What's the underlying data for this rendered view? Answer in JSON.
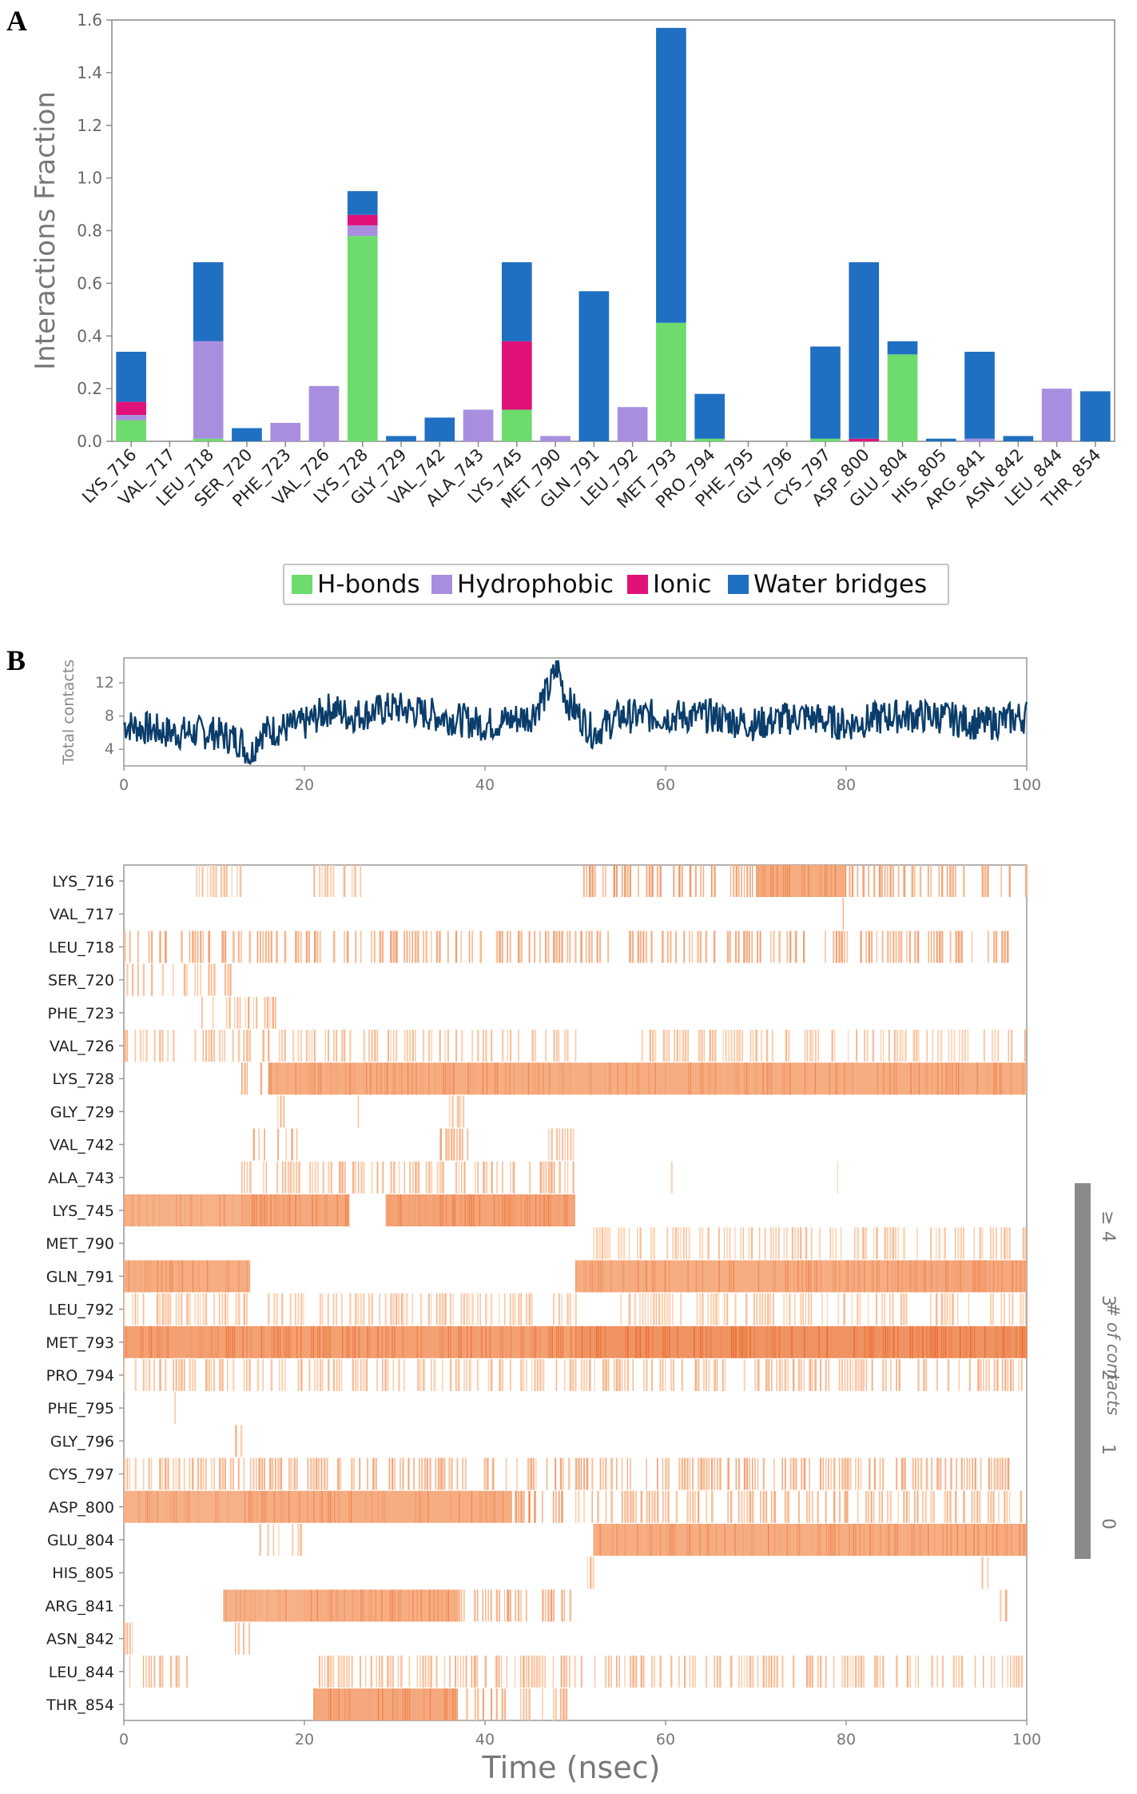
{
  "chart_data": [
    {
      "panel": "A",
      "type": "bar",
      "stacked": true,
      "ylabel": "Interactions Fraction",
      "xlabel": "",
      "ylim": [
        0,
        1.6
      ],
      "yticks": [
        0.0,
        0.2,
        0.4,
        0.6,
        0.8,
        1.0,
        1.2,
        1.4,
        1.6
      ],
      "ytick_labels": [
        "0.0",
        "0.2",
        "0.4",
        "0.6",
        "0.8",
        "1.0",
        "1.2",
        "1.4",
        "1.6"
      ],
      "categories": [
        "LYS_716",
        "VAL_717",
        "LEU_718",
        "SER_720",
        "PHE_723",
        "VAL_726",
        "LYS_728",
        "GLY_729",
        "VAL_742",
        "ALA_743",
        "LYS_745",
        "MET_790",
        "GLN_791",
        "LEU_792",
        "MET_793",
        "PRO_794",
        "PHE_795",
        "GLY_796",
        "CYS_797",
        "ASP_800",
        "GLU_804",
        "HIS_805",
        "ARG_841",
        "ASN_842",
        "LEU_844",
        "THR_854"
      ],
      "series": [
        {
          "name": "H-bonds",
          "color": "#6ddc6d",
          "values": [
            0.08,
            0,
            0.01,
            0,
            0,
            0,
            0.78,
            0,
            0,
            0,
            0.12,
            0,
            0,
            0,
            0.45,
            0.01,
            0,
            0,
            0.01,
            0,
            0.33,
            0,
            0,
            0,
            0,
            0
          ]
        },
        {
          "name": "Hydrophobic",
          "color": "#a98ee0",
          "values": [
            0.02,
            0,
            0.37,
            0,
            0.07,
            0.21,
            0.04,
            0,
            0,
            0.12,
            0,
            0.02,
            0,
            0.13,
            0,
            0,
            0,
            0,
            0,
            0,
            0,
            0,
            0.01,
            0,
            0.2,
            0
          ]
        },
        {
          "name": "Ionic",
          "color": "#e0127a",
          "values": [
            0.05,
            0,
            0,
            0,
            0,
            0,
            0.04,
            0,
            0,
            0,
            0.26,
            0,
            0,
            0,
            0,
            0,
            0,
            0,
            0,
            0.01,
            0,
            0,
            0,
            0,
            0,
            0
          ]
        },
        {
          "name": "Water bridges",
          "color": "#1f6fc2",
          "values": [
            0.19,
            0,
            0.3,
            0.05,
            0,
            0,
            0.09,
            0.02,
            0.09,
            0,
            0.3,
            0,
            0.57,
            0,
            1.12,
            0.17,
            0,
            0,
            0.35,
            0.67,
            0.05,
            0.01,
            0.33,
            0.02,
            0,
            0.19
          ]
        }
      ],
      "legend": [
        "H-bonds",
        "Hydrophobic",
        "Ionic",
        "Water bridges"
      ],
      "legend_placement": "bottom-center"
    },
    {
      "panel": "B-top",
      "type": "line",
      "ylabel": "Total contacts",
      "xlabel": "",
      "xlim": [
        0,
        100
      ],
      "ylim": [
        2,
        15
      ],
      "xticks": [
        0,
        20,
        40,
        60,
        80,
        100
      ],
      "xtick_labels": [
        "0",
        "20",
        "40",
        "60",
        "80",
        "100"
      ],
      "yticks": [
        4,
        8,
        12
      ],
      "ytick_labels": [
        "4",
        "8",
        "12"
      ],
      "line_color": "#0b3d6b",
      "description_points": {
        "x": [
          0,
          5,
          10,
          13,
          14,
          15,
          20,
          23,
          25,
          30,
          35,
          40,
          45,
          47,
          48,
          49,
          52,
          55,
          60,
          65,
          70,
          75,
          80,
          85,
          90,
          95,
          100
        ],
        "y": [
          7,
          6,
          6,
          5,
          3,
          6,
          7,
          9,
          8,
          9,
          8,
          7,
          8,
          11,
          14,
          10,
          6,
          8,
          8,
          8,
          7,
          8,
          7,
          8,
          8,
          7,
          8
        ]
      }
    },
    {
      "panel": "B-bottom",
      "type": "heatmap",
      "xlabel": "Time (nsec)",
      "xlim": [
        0,
        100
      ],
      "xticks": [
        0,
        20,
        40,
        60,
        80,
        100
      ],
      "xtick_labels": [
        "0",
        "20",
        "40",
        "60",
        "80",
        "100"
      ],
      "rows": [
        "LYS_716",
        "VAL_717",
        "LEU_718",
        "SER_720",
        "PHE_723",
        "VAL_726",
        "LYS_728",
        "GLY_729",
        "VAL_742",
        "ALA_743",
        "LYS_745",
        "MET_790",
        "GLN_791",
        "LEU_792",
        "MET_793",
        "PRO_794",
        "PHE_795",
        "GLY_796",
        "CYS_797",
        "ASP_800",
        "GLU_804",
        "HIS_805",
        "ARG_841",
        "ASN_842",
        "LEU_844",
        "THR_854"
      ],
      "segments": [
        [
          [
            50,
            70,
            0.45
          ],
          [
            70,
            80,
            0.55
          ],
          [
            80,
            93,
            0.35
          ],
          [
            95,
            100,
            0.35
          ],
          [
            8,
            13,
            0.15
          ],
          [
            21,
            27,
            0.15
          ],
          [
            41,
            42,
            0.15
          ]
        ],
        [
          [
            79,
            80,
            0.2
          ]
        ],
        [
          [
            0,
            100,
            0.35
          ]
        ],
        [
          [
            0,
            12,
            0.2
          ]
        ],
        [
          [
            8,
            17,
            0.2
          ]
        ],
        [
          [
            0,
            25,
            0.2
          ],
          [
            25,
            50,
            0.15
          ],
          [
            57,
            100,
            0.12
          ]
        ],
        [
          [
            13,
            16,
            0.3
          ],
          [
            16,
            100,
            0.55
          ]
        ],
        [
          [
            17,
            18,
            0.15
          ],
          [
            25,
            26,
            0.15
          ],
          [
            36,
            38,
            0.15
          ]
        ],
        [
          [
            14,
            20,
            0.3
          ],
          [
            35,
            39,
            0.35
          ],
          [
            47,
            50,
            0.2
          ]
        ],
        [
          [
            13,
            22,
            0.15
          ],
          [
            22,
            50,
            0.2
          ],
          [
            60,
            61,
            0.1
          ],
          [
            79,
            80,
            0.1
          ]
        ],
        [
          [
            0,
            13,
            0.5
          ],
          [
            13,
            25,
            0.6
          ],
          [
            29,
            50,
            0.65
          ]
        ],
        [
          [
            52,
            100,
            0.08
          ]
        ],
        [
          [
            0,
            14,
            0.55
          ],
          [
            50,
            85,
            0.55
          ],
          [
            85,
            100,
            0.6
          ]
        ],
        [
          [
            0,
            50,
            0.12
          ],
          [
            55,
            100,
            0.1
          ]
        ],
        [
          [
            0,
            50,
            0.7
          ],
          [
            50,
            100,
            0.85
          ]
        ],
        [
          [
            0,
            50,
            0.15
          ],
          [
            50,
            100,
            0.2
          ]
        ],
        [
          [
            5,
            6,
            0.15
          ]
        ],
        [
          [
            12,
            13,
            0.15
          ]
        ],
        [
          [
            0,
            14,
            0.2
          ],
          [
            14,
            50,
            0.3
          ],
          [
            50,
            98,
            0.3
          ]
        ],
        [
          [
            0,
            15,
            0.5
          ],
          [
            15,
            43,
            0.55
          ],
          [
            43,
            50,
            0.45
          ],
          [
            50,
            80,
            0.25
          ],
          [
            80,
            100,
            0.2
          ]
        ],
        [
          [
            15,
            20,
            0.15
          ],
          [
            52,
            100,
            0.55
          ]
        ],
        [
          [
            51,
            52,
            0.15
          ],
          [
            95,
            96,
            0.15
          ]
        ],
        [
          [
            11,
            20,
            0.5
          ],
          [
            20,
            37,
            0.55
          ],
          [
            37,
            50,
            0.35
          ],
          [
            97,
            98,
            0.2
          ]
        ],
        [
          [
            0,
            1,
            0.15
          ],
          [
            12,
            14,
            0.2
          ]
        ],
        [
          [
            0,
            7,
            0.2
          ],
          [
            21,
            50,
            0.2
          ],
          [
            50,
            100,
            0.2
          ]
        ],
        [
          [
            21,
            37,
            0.6
          ],
          [
            37,
            43,
            0.25
          ],
          [
            43,
            48,
            0.2
          ],
          [
            48,
            49,
            0.2
          ]
        ]
      ],
      "colorbar": {
        "label": "# of contacts",
        "tick_labels": [
          "0",
          "1",
          "2",
          "3",
          "≥ 4"
        ]
      }
    }
  ],
  "panel_labels": [
    "A",
    "B"
  ]
}
